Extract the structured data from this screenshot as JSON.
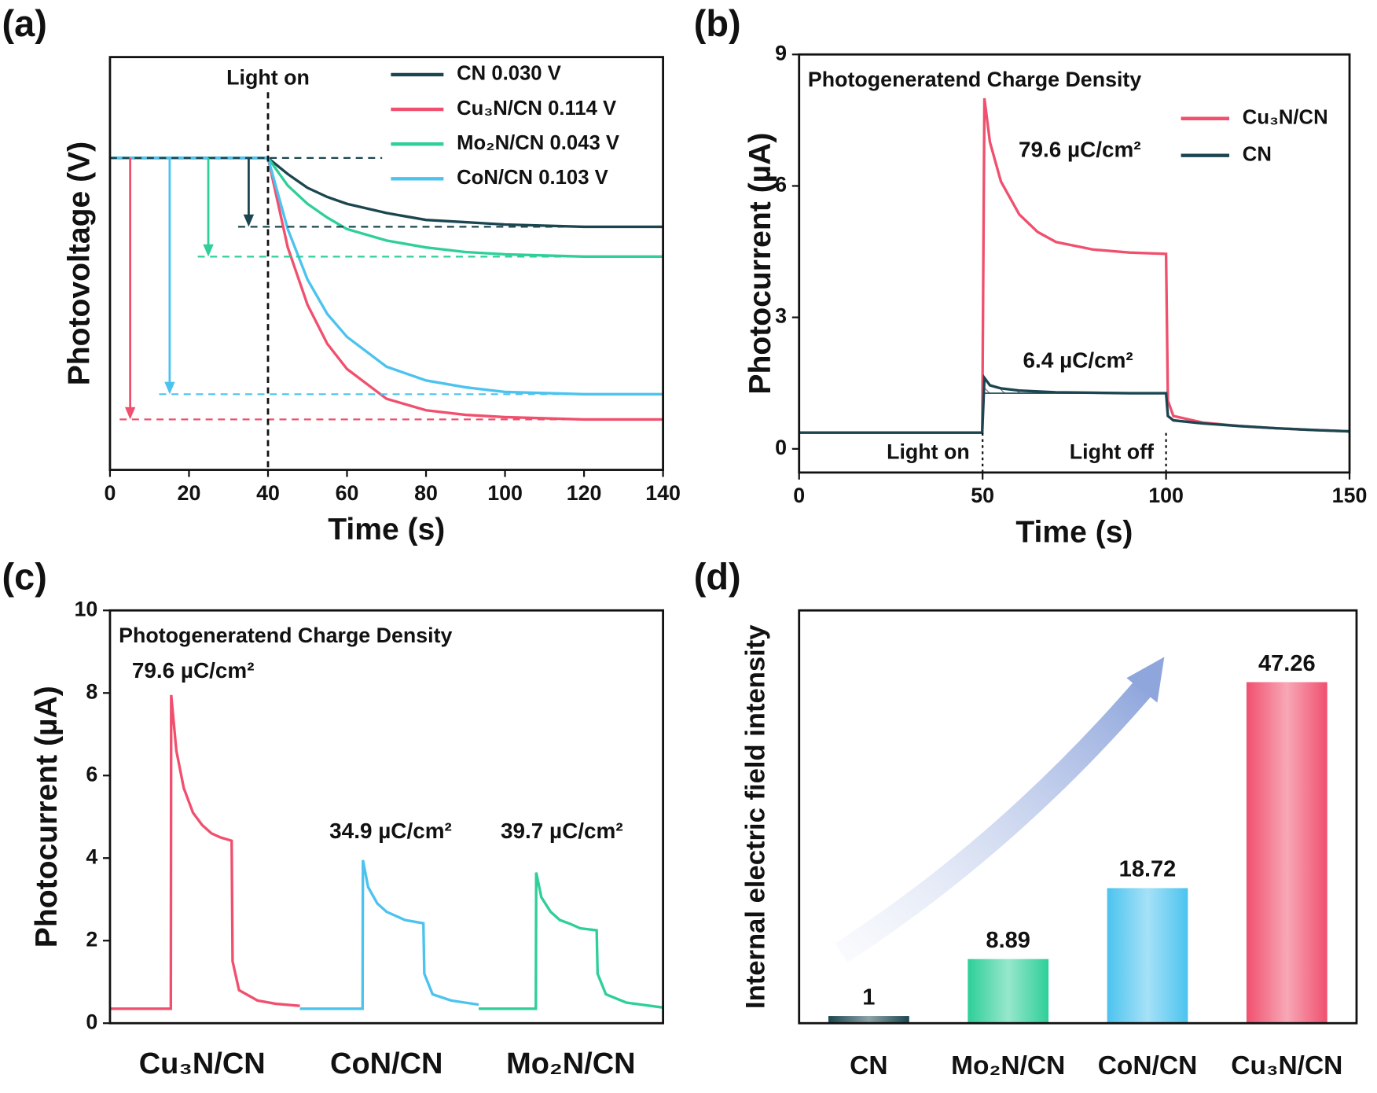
{
  "chart_data": [
    {
      "type": "line",
      "panel_label": "(a)",
      "xlabel": "Time (s)",
      "ylabel": "Photovoltage (V)",
      "xlim": [
        0,
        140
      ],
      "xticks": [
        0,
        20,
        40,
        60,
        80,
        100,
        120,
        140
      ],
      "ylim": [
        -0.136,
        0.044
      ],
      "legend_position": "upper right",
      "x": [
        0,
        10,
        20,
        30,
        40,
        45,
        50,
        55,
        60,
        70,
        80,
        90,
        100,
        120,
        140
      ],
      "series": [
        {
          "name": "CN 0.030 V",
          "color": "#1b4650",
          "values": [
            0,
            0,
            0,
            0,
            0,
            -0.007,
            -0.013,
            -0.017,
            -0.02,
            -0.024,
            -0.027,
            -0.028,
            -0.029,
            -0.03,
            -0.03
          ]
        },
        {
          "name": "Cu₃N/CN 0.114 V",
          "color": "#f0506e",
          "values": [
            0,
            0,
            0,
            0,
            0,
            -0.039,
            -0.064,
            -0.081,
            -0.092,
            -0.105,
            -0.11,
            -0.112,
            -0.113,
            -0.114,
            -0.114
          ]
        },
        {
          "name": "Mo₂N/CN 0.043 V",
          "color": "#2ecf98",
          "values": [
            0,
            0,
            0,
            0,
            0,
            -0.012,
            -0.02,
            -0.026,
            -0.031,
            -0.036,
            -0.039,
            -0.041,
            -0.042,
            -0.043,
            -0.043
          ]
        },
        {
          "name": "CoN/CN 0.103 V",
          "color": "#4cc3ef",
          "values": [
            0,
            0,
            0,
            0,
            0,
            -0.031,
            -0.053,
            -0.068,
            -0.078,
            -0.091,
            -0.097,
            -0.1,
            -0.102,
            -0.103,
            -0.103
          ]
        }
      ],
      "annotations": [
        {
          "text": "Light on",
          "x": 40
        }
      ]
    },
    {
      "type": "line",
      "panel_label": "(b)",
      "title": "Photogeneratend Charge Density",
      "xlabel": "Time (s)",
      "ylabel": "Photocurrent (µA)",
      "xlim": [
        0,
        150
      ],
      "xticks": [
        0,
        50,
        100,
        150
      ],
      "ylim": [
        -0.54,
        9
      ],
      "yticks": [
        0,
        3,
        6,
        9
      ],
      "hatch": true,
      "legend_position": "upper right",
      "x": [
        0,
        49.9,
        50.5,
        52,
        55,
        60,
        65,
        70,
        80,
        90,
        100,
        100.5,
        102,
        110,
        120,
        130,
        140,
        150
      ],
      "series": [
        {
          "name": "Cu₃N/CN",
          "color": "#f0506e",
          "values": [
            0.37,
            0.37,
            8.0,
            7.0,
            6.1,
            5.35,
            4.95,
            4.72,
            4.55,
            4.48,
            4.45,
            1.1,
            0.75,
            0.6,
            0.52,
            0.47,
            0.43,
            0.4
          ]
        },
        {
          "name": "CN",
          "color": "#1b4650",
          "values": [
            0.37,
            0.37,
            1.62,
            1.45,
            1.38,
            1.33,
            1.31,
            1.29,
            1.28,
            1.27,
            1.27,
            0.75,
            0.65,
            0.58,
            0.52,
            0.47,
            0.43,
            0.4
          ]
        }
      ],
      "annotations": [
        {
          "text": "79.6 µC/cm²",
          "color": "#f0506e"
        },
        {
          "text": "6.4 µC/cm²",
          "color": "#1b4650"
        },
        {
          "text": "Light on",
          "x": 50
        },
        {
          "text": "Light off",
          "x": 100
        }
      ]
    },
    {
      "type": "line",
      "panel_label": "(c)",
      "title": "Photogeneratend Charge Density",
      "ylabel": "Photocurrent (µA)",
      "xlim": [
        0,
        3
      ],
      "ylim": [
        0,
        10
      ],
      "yticks": [
        0,
        2,
        4,
        6,
        8,
        10
      ],
      "hatch": true,
      "categories": [
        "Cu₃N/CN",
        "CoN/CN",
        "Mo₂N/CN"
      ],
      "series": [
        {
          "color": "#f0506e",
          "x": [
            0,
            0.33,
            0.332,
            0.36,
            0.4,
            0.45,
            0.5,
            0.55,
            0.6,
            0.66,
            0.665,
            0.7,
            0.8,
            0.9,
            1.03
          ],
          "values": [
            0.35,
            0.35,
            7.95,
            6.6,
            5.7,
            5.1,
            4.8,
            4.6,
            4.5,
            4.42,
            1.5,
            0.8,
            0.55,
            0.47,
            0.42
          ]
        },
        {
          "color": "#4cc3ef",
          "x": [
            1.03,
            1.37,
            1.372,
            1.4,
            1.45,
            1.5,
            1.55,
            1.6,
            1.7,
            1.705,
            1.75,
            1.85,
            2.0
          ],
          "values": [
            0.35,
            0.35,
            3.95,
            3.3,
            2.9,
            2.7,
            2.6,
            2.5,
            2.42,
            1.2,
            0.7,
            0.55,
            0.45
          ]
        },
        {
          "color": "#2ecf98",
          "x": [
            2.0,
            2.31,
            2.312,
            2.34,
            2.39,
            2.44,
            2.5,
            2.55,
            2.64,
            2.645,
            2.69,
            2.8,
            3.0
          ],
          "values": [
            0.35,
            0.35,
            3.65,
            3.05,
            2.7,
            2.5,
            2.4,
            2.3,
            2.25,
            1.2,
            0.7,
            0.5,
            0.38
          ]
        }
      ],
      "annotations": [
        {
          "text": "79.6 µC/cm²",
          "color": "#f0506e"
        },
        {
          "text": "34.9 µC/cm²",
          "color": "#4cc3ef"
        },
        {
          "text": "39.7 µC/cm²",
          "color": "#2ecf98"
        }
      ]
    },
    {
      "type": "bar",
      "panel_label": "(d)",
      "ylabel": "Internal electric field intensity",
      "ylim": [
        0,
        57.2
      ],
      "categories": [
        "CN",
        "Mo₂N/CN",
        "CoN/CN",
        "Cu₃N/CN"
      ],
      "values": [
        1,
        8.89,
        18.72,
        47.26
      ],
      "colors": [
        "#1b4650",
        "#2ecf98",
        "#4cc3ef",
        "#f0506e"
      ]
    }
  ]
}
